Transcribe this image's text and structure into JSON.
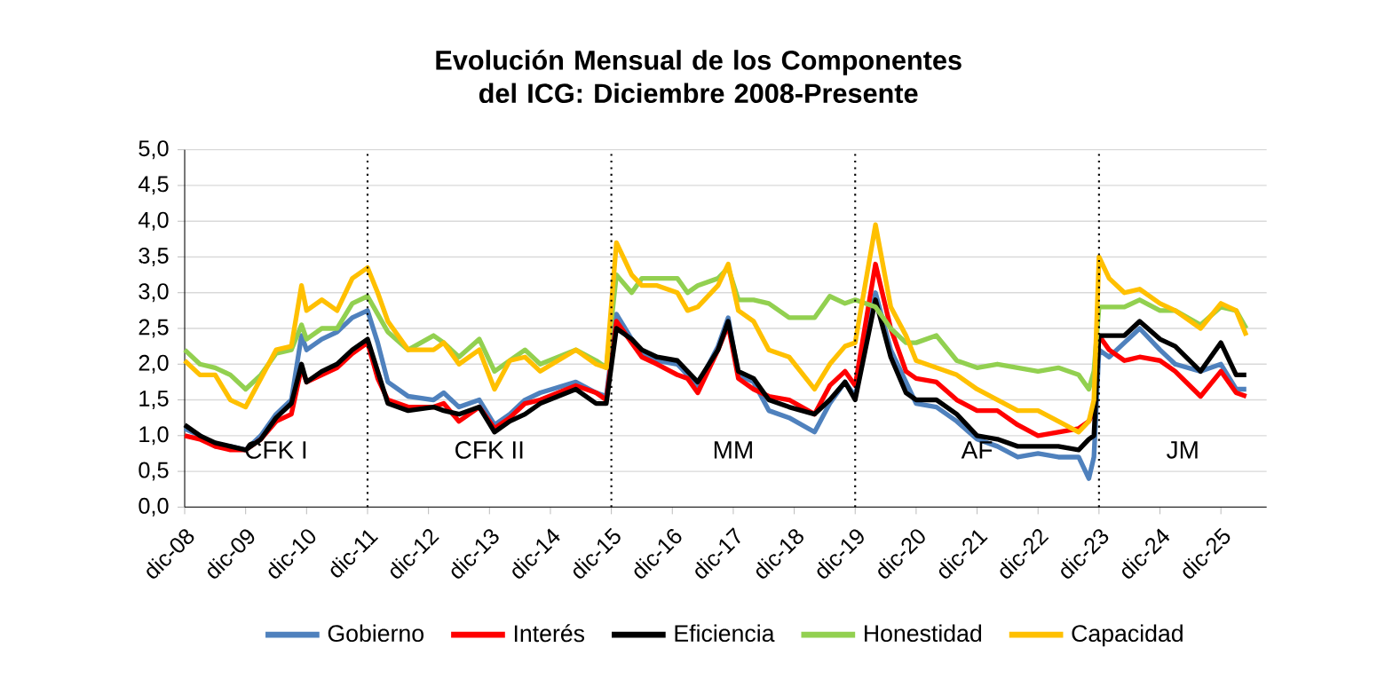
{
  "chart_data": {
    "type": "line",
    "title": "Evolución Mensual de los Componentes del ICG: Diciembre 2008-Presente",
    "x": [
      "2008-12",
      "2009-03",
      "2009-06",
      "2009-09",
      "2009-12",
      "2010-03",
      "2010-06",
      "2010-09",
      "2010-11",
      "2010-12",
      "2011-03",
      "2011-06",
      "2011-09",
      "2011-12",
      "2012-02",
      "2012-04",
      "2012-08",
      "2013-01",
      "2013-03",
      "2013-06",
      "2013-10",
      "2014-01",
      "2014-04",
      "2014-07",
      "2014-10",
      "2015-05",
      "2015-09",
      "2015-11",
      "2016-01",
      "2016-04",
      "2016-06",
      "2016-09",
      "2017-01",
      "2017-03",
      "2017-05",
      "2017-09",
      "2017-11",
      "2018-01",
      "2018-04",
      "2018-07",
      "2018-11",
      "2019-04",
      "2019-07",
      "2019-10",
      "2019-12",
      "2020-04",
      "2020-07",
      "2020-10",
      "2020-12",
      "2021-04",
      "2021-08",
      "2021-12",
      "2022-04",
      "2022-08",
      "2022-12",
      "2023-04",
      "2023-08",
      "2023-10",
      "2023-11",
      "2023-12",
      "2024-02",
      "2024-05",
      "2024-08",
      "2024-12",
      "2025-03",
      "2025-08",
      "2025-12",
      "2026-03",
      "2026-05"
    ],
    "series": [
      {
        "name": "Gobierno",
        "color": "#4f81bd",
        "values": [
          1.1,
          1.0,
          0.85,
          0.85,
          0.8,
          1.0,
          1.3,
          1.5,
          2.4,
          2.2,
          2.35,
          2.45,
          2.65,
          2.75,
          2.3,
          1.75,
          1.55,
          1.5,
          1.6,
          1.4,
          1.5,
          1.15,
          1.3,
          1.5,
          1.6,
          1.75,
          1.6,
          1.55,
          2.7,
          2.35,
          2.15,
          2.05,
          2.0,
          1.85,
          1.7,
          2.25,
          2.65,
          1.85,
          1.75,
          1.35,
          1.25,
          1.05,
          1.45,
          1.75,
          1.55,
          3.0,
          2.2,
          1.75,
          1.45,
          1.4,
          1.2,
          0.95,
          0.85,
          0.7,
          0.75,
          0.7,
          0.7,
          0.4,
          0.7,
          2.2,
          2.1,
          2.3,
          2.5,
          2.2,
          2.0,
          1.9,
          2.0,
          1.65,
          1.65
        ]
      },
      {
        "name": "Interés",
        "color": "#ff0000",
        "values": [
          1.0,
          0.95,
          0.85,
          0.8,
          0.8,
          0.95,
          1.2,
          1.3,
          1.95,
          1.75,
          1.85,
          1.95,
          2.15,
          2.3,
          1.8,
          1.5,
          1.4,
          1.4,
          1.45,
          1.2,
          1.4,
          1.1,
          1.25,
          1.45,
          1.5,
          1.7,
          1.6,
          1.5,
          2.6,
          2.3,
          2.1,
          2.0,
          1.85,
          1.8,
          1.6,
          2.2,
          2.55,
          1.8,
          1.65,
          1.55,
          1.5,
          1.3,
          1.7,
          1.9,
          1.7,
          3.4,
          2.5,
          1.9,
          1.8,
          1.75,
          1.5,
          1.35,
          1.35,
          1.15,
          1.0,
          1.05,
          1.1,
          1.2,
          1.35,
          2.4,
          2.2,
          2.05,
          2.1,
          2.05,
          1.9,
          1.55,
          1.9,
          1.6,
          1.55
        ]
      },
      {
        "name": "Eficiencia",
        "color": "#000000",
        "values": [
          1.15,
          1.0,
          0.9,
          0.85,
          0.8,
          0.95,
          1.25,
          1.45,
          2.0,
          1.75,
          1.9,
          2.0,
          2.2,
          2.35,
          1.9,
          1.45,
          1.35,
          1.4,
          1.35,
          1.3,
          1.4,
          1.05,
          1.2,
          1.3,
          1.45,
          1.65,
          1.45,
          1.45,
          2.5,
          2.35,
          2.2,
          2.1,
          2.05,
          1.9,
          1.75,
          2.2,
          2.6,
          1.9,
          1.8,
          1.5,
          1.4,
          1.3,
          1.5,
          1.75,
          1.5,
          2.9,
          2.1,
          1.6,
          1.5,
          1.5,
          1.3,
          1.0,
          0.95,
          0.85,
          0.85,
          0.85,
          0.8,
          0.95,
          1.0,
          2.4,
          2.4,
          2.4,
          2.6,
          2.35,
          2.25,
          1.9,
          2.3,
          1.85,
          1.85
        ]
      },
      {
        "name": "Honestidad",
        "color": "#92d050",
        "values": [
          2.2,
          2.0,
          1.95,
          1.85,
          1.65,
          1.85,
          2.15,
          2.2,
          2.55,
          2.35,
          2.5,
          2.5,
          2.85,
          2.95,
          2.7,
          2.45,
          2.2,
          2.4,
          2.3,
          2.1,
          2.35,
          1.9,
          2.05,
          2.2,
          2.0,
          2.2,
          2.05,
          1.95,
          3.25,
          3.0,
          3.2,
          3.2,
          3.2,
          3.0,
          3.1,
          3.2,
          3.35,
          2.9,
          2.9,
          2.85,
          2.65,
          2.65,
          2.95,
          2.85,
          2.9,
          2.8,
          2.5,
          2.3,
          2.3,
          2.4,
          2.05,
          1.95,
          2.0,
          1.95,
          1.9,
          1.95,
          1.85,
          1.65,
          1.9,
          2.8,
          2.8,
          2.8,
          2.9,
          2.75,
          2.75,
          2.55,
          2.8,
          2.75,
          2.5
        ]
      },
      {
        "name": "Capacidad",
        "color": "#ffc000",
        "values": [
          2.05,
          1.85,
          1.85,
          1.5,
          1.4,
          1.8,
          2.2,
          2.25,
          3.1,
          2.75,
          2.9,
          2.75,
          3.2,
          3.35,
          3.0,
          2.6,
          2.2,
          2.2,
          2.3,
          2.0,
          2.2,
          1.65,
          2.05,
          2.1,
          1.9,
          2.2,
          2.0,
          1.95,
          3.7,
          3.25,
          3.1,
          3.1,
          3.0,
          2.75,
          2.8,
          3.1,
          3.4,
          2.75,
          2.6,
          2.2,
          2.1,
          1.65,
          2.0,
          2.25,
          2.3,
          3.95,
          2.8,
          2.4,
          2.05,
          1.95,
          1.85,
          1.65,
          1.5,
          1.35,
          1.35,
          1.2,
          1.05,
          1.2,
          1.5,
          3.5,
          3.2,
          3.0,
          3.05,
          2.85,
          2.75,
          2.5,
          2.85,
          2.75,
          2.4
        ]
      }
    ],
    "xlim": [
      "2008-12",
      "2026-09"
    ],
    "xticks": [
      {
        "value": "2008-12",
        "label": "dic-08"
      },
      {
        "value": "2009-12",
        "label": "dic-09"
      },
      {
        "value": "2010-12",
        "label": "dic-10"
      },
      {
        "value": "2011-12",
        "label": "dic-11"
      },
      {
        "value": "2012-12",
        "label": "dic-12"
      },
      {
        "value": "2013-12",
        "label": "dic-13"
      },
      {
        "value": "2014-12",
        "label": "dic-14"
      },
      {
        "value": "2015-12",
        "label": "dic-15"
      },
      {
        "value": "2016-12",
        "label": "dic-16"
      },
      {
        "value": "2017-12",
        "label": "dic-17"
      },
      {
        "value": "2018-12",
        "label": "dic-18"
      },
      {
        "value": "2019-12",
        "label": "dic-19"
      },
      {
        "value": "2020-12",
        "label": "dic-20"
      },
      {
        "value": "2021-12",
        "label": "dic-21"
      },
      {
        "value": "2022-12",
        "label": "dic-22"
      },
      {
        "value": "2023-12",
        "label": "dic-23"
      },
      {
        "value": "2024-12",
        "label": "dic-24"
      },
      {
        "value": "2025-12",
        "label": "dic-25"
      }
    ],
    "ylim": [
      0,
      5
    ],
    "yticks": [
      {
        "value": 0,
        "label": "0,0"
      },
      {
        "value": 0.5,
        "label": "0,5"
      },
      {
        "value": 1,
        "label": "1,0"
      },
      {
        "value": 1.5,
        "label": "1,5"
      },
      {
        "value": 2,
        "label": "2,0"
      },
      {
        "value": 2.5,
        "label": "2,5"
      },
      {
        "value": 3,
        "label": "3,0"
      },
      {
        "value": 3.5,
        "label": "3,5"
      },
      {
        "value": 4,
        "label": "4,0"
      },
      {
        "value": 4.5,
        "label": "4,5"
      },
      {
        "value": 5,
        "label": "5,0"
      }
    ],
    "ref_lines": [
      {
        "axis": "x",
        "value": "2011-12",
        "line_style": "dotted"
      },
      {
        "axis": "x",
        "value": "2015-12",
        "line_style": "dotted"
      },
      {
        "axis": "x",
        "value": "2019-12",
        "line_style": "dotted"
      },
      {
        "axis": "x",
        "value": "2023-12",
        "line_style": "dotted"
      }
    ],
    "annotations": [
      "CFK I",
      "CFK II",
      "MM",
      "AF",
      "JM"
    ],
    "grid": "y",
    "legend": "bottom"
  }
}
